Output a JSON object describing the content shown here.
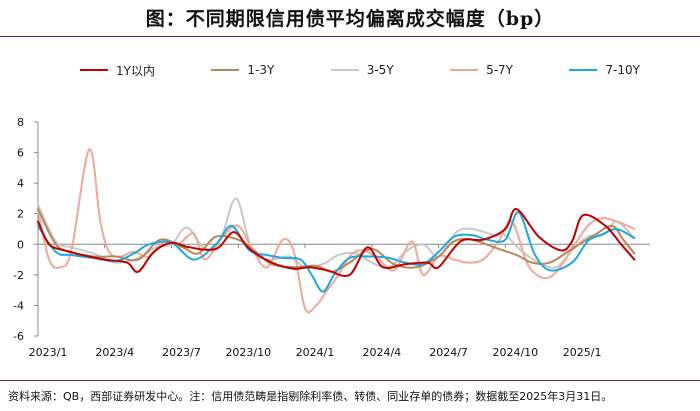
{
  "header": {
    "title": "图：不同期限信用债平均偏离成交幅度（bp）"
  },
  "source": {
    "text": "资料来源：QB，西部证券研发中心。注：信用债范畴是指剔除利率债、转债、同业存单的债券；数据截至2025年3月31日。"
  },
  "chart_data": {
    "type": "line",
    "title": "不同期限信用债平均偏离成交幅度（bp）",
    "xlabel": "",
    "ylabel": "",
    "ylim": [
      -6,
      8
    ],
    "yticks": [
      -6,
      -4,
      -2,
      0,
      2,
      4,
      6,
      8
    ],
    "xlim": [
      0,
      27.5
    ],
    "xtick_labels": [
      "2023/1",
      "2023/4",
      "2023/7",
      "2023/10",
      "2024/1",
      "2024/4",
      "2024/7",
      "2024/10",
      "2025/1"
    ],
    "xtick_positions": [
      0,
      3,
      6,
      9,
      12,
      15,
      18,
      21,
      24
    ],
    "legend_position": "top",
    "grid": false,
    "series": [
      {
        "name": "1Y以内",
        "color": "#c00000",
        "x": [
          0,
          0.5,
          1.2,
          2.0,
          3.0,
          4.0,
          4.5,
          5.2,
          6.0,
          6.8,
          8.0,
          8.8,
          9.5,
          10.5,
          11.5,
          12.2,
          13.0,
          14.0,
          14.8,
          15.5,
          16.5,
          17.5,
          18.0,
          19.0,
          20.0,
          21.0,
          21.5,
          22.5,
          23.5,
          24.0,
          24.5,
          25.5,
          26.2,
          26.8
        ],
        "y": [
          1.5,
          0.0,
          -0.4,
          -0.7,
          -1.0,
          -1.2,
          -1.8,
          -0.5,
          0.1,
          -0.2,
          -0.3,
          0.8,
          -0.3,
          -1.2,
          -1.6,
          -1.5,
          -1.7,
          -2.0,
          -0.2,
          -1.5,
          -1.3,
          -1.2,
          -1.5,
          0.2,
          0.3,
          1.0,
          2.3,
          0.5,
          -0.4,
          0.2,
          1.9,
          1.2,
          0.0,
          -1.0
        ]
      },
      {
        "name": "1-3Y",
        "color": "#b8875a",
        "x": [
          0,
          0.8,
          1.5,
          2.5,
          3.5,
          4.5,
          5.5,
          6.5,
          7.2,
          8.0,
          9.0,
          9.8,
          10.5,
          11.5,
          12.5,
          13.2,
          14.0,
          15.0,
          16.0,
          17.0,
          18.0,
          18.7,
          19.5,
          20.5,
          21.5,
          22.2,
          23.0,
          24.0,
          25.0,
          25.8,
          26.3,
          26.8
        ],
        "y": [
          2.3,
          0.0,
          -0.5,
          -0.8,
          -0.8,
          -1.0,
          0.3,
          -0.2,
          -0.6,
          0.5,
          0.3,
          -0.5,
          -1.3,
          -1.5,
          -1.4,
          -1.8,
          -1.2,
          -0.3,
          -1.3,
          -1.5,
          -0.8,
          0.2,
          0.3,
          -0.2,
          -0.7,
          -1.2,
          -1.2,
          -0.3,
          0.6,
          1.2,
          0.3,
          -0.6
        ]
      },
      {
        "name": "3-5Y",
        "color": "#c8c8c8",
        "x": [
          0,
          0.8,
          1.5,
          2.5,
          3.5,
          4.5,
          5.3,
          6.0,
          6.7,
          7.5,
          8.2,
          8.9,
          9.6,
          10.4,
          11.3,
          12.0,
          12.8,
          13.5,
          14.3,
          15.0,
          15.8,
          16.5,
          17.3,
          18.0,
          18.8,
          19.5,
          20.5,
          21.0,
          21.7,
          22.5,
          23.3,
          24.0,
          24.7,
          25.5,
          26.0,
          26.8
        ],
        "y": [
          2.6,
          0.2,
          -0.2,
          -0.6,
          -1.2,
          -0.9,
          -0.2,
          0.0,
          1.1,
          -0.3,
          0.3,
          3.0,
          -0.3,
          -1.0,
          -0.8,
          -1.5,
          -1.3,
          -0.7,
          -0.6,
          -1.2,
          -1.5,
          -0.5,
          0.0,
          -0.8,
          0.8,
          1.0,
          0.6,
          0.6,
          -0.4,
          -1.2,
          -1.5,
          -0.4,
          0.5,
          0.7,
          1.5,
          0.4
        ]
      },
      {
        "name": "5-7Y",
        "color": "#f0a898",
        "x": [
          0,
          0.5,
          1.0,
          1.5,
          2.3,
          2.8,
          3.2,
          3.7,
          4.3,
          5.0,
          5.7,
          6.3,
          7.0,
          7.5,
          8.3,
          9.0,
          9.7,
          10.3,
          11.0,
          11.5,
          12.0,
          12.5,
          13.0,
          13.5,
          14.0,
          14.5,
          15.2,
          16.0,
          16.8,
          17.3,
          18.0,
          18.7,
          19.3,
          20.0,
          20.7,
          21.3,
          22.0,
          22.7,
          23.3,
          24.0,
          24.7,
          25.3,
          26.0,
          26.8
        ],
        "y": [
          2.2,
          -1.0,
          -1.5,
          -0.4,
          6.2,
          1.5,
          -0.5,
          -0.8,
          -0.5,
          -0.8,
          0.2,
          0.0,
          0.7,
          -1.0,
          0.5,
          1.2,
          -0.5,
          -1.5,
          0.3,
          -0.5,
          -4.2,
          -4.0,
          -3.0,
          -2.0,
          -0.8,
          -0.4,
          -0.8,
          -1.7,
          0.2,
          -2.0,
          -0.8,
          -1.0,
          -1.2,
          -1.0,
          0.2,
          1.5,
          -1.3,
          -2.2,
          -1.8,
          -0.3,
          1.2,
          1.7,
          1.5,
          1.0
        ]
      },
      {
        "name": "7-10Y",
        "color": "#1fa9e1",
        "x": [
          0,
          0.8,
          1.5,
          2.5,
          3.5,
          4.3,
          5.0,
          6.0,
          7.0,
          8.0,
          8.7,
          9.5,
          10.3,
          11.0,
          11.8,
          12.3,
          12.8,
          13.3,
          14.0,
          15.0,
          15.8,
          16.5,
          17.3,
          18.0,
          18.7,
          19.5,
          20.2,
          21.0,
          21.6,
          22.3,
          23.0,
          24.0,
          24.7,
          25.3,
          26.0,
          26.8
        ],
        "y": [
          1.2,
          -0.5,
          -0.7,
          -0.9,
          -1.1,
          -0.6,
          0.0,
          0.1,
          -1.0,
          0.0,
          1.2,
          -0.4,
          -0.7,
          -0.9,
          -1.0,
          -2.0,
          -3.1,
          -2.0,
          -0.9,
          -0.8,
          -0.9,
          -1.2,
          -1.3,
          -0.5,
          0.5,
          0.6,
          0.3,
          0.3,
          2.1,
          -0.6,
          -1.7,
          -1.2,
          0.2,
          0.6,
          1.0,
          0.4
        ]
      }
    ]
  }
}
